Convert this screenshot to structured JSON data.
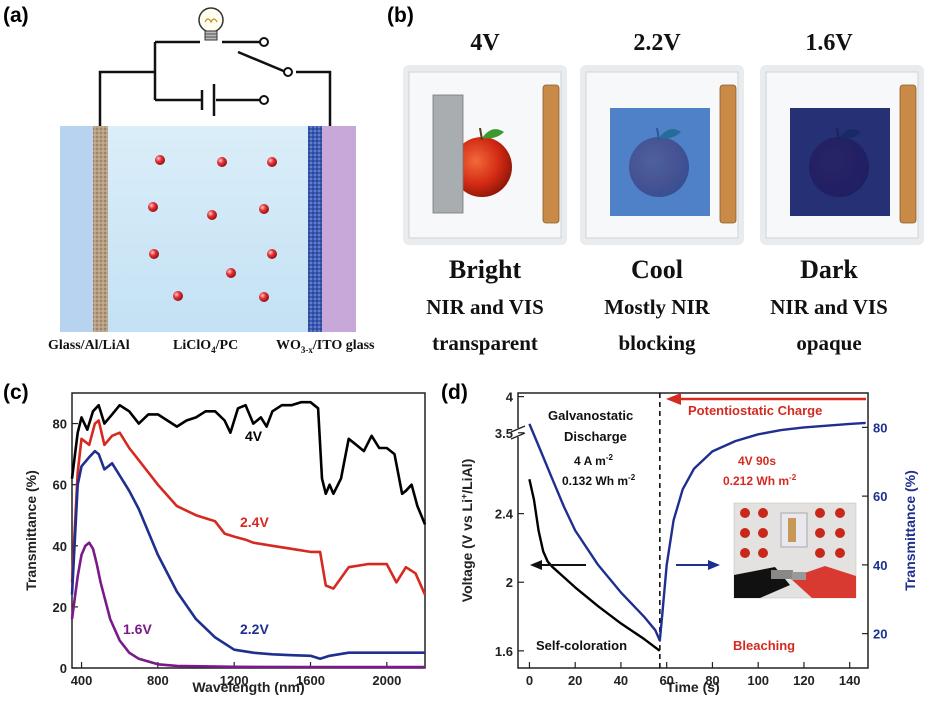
{
  "panel_a": {
    "label": "(a)",
    "layer_labels": [
      "Glass/Al/LiAl",
      "LiClO",
      "4",
      "/PC",
      "WO",
      "3-x",
      "/ITO glass"
    ],
    "icons": [
      "light-bulb-icon",
      "battery-icon",
      "switch-icon"
    ]
  },
  "panel_b": {
    "label": "(b)",
    "states": [
      {
        "voltage": "4V",
        "name": "Bright",
        "desc1": "NIR and VIS",
        "desc2": "transparent",
        "tint": "#ffffff"
      },
      {
        "voltage": "2.2V",
        "name": "Cool",
        "desc1": "Mostly NIR",
        "desc2": "blocking",
        "tint": "#1f5fb8"
      },
      {
        "voltage": "1.6V",
        "name": "Dark",
        "desc1": "NIR and VIS",
        "desc2": "opaque",
        "tint": "#15206a"
      }
    ]
  },
  "chart_data": [
    {
      "panel": "(c)",
      "type": "line",
      "title": "",
      "xlabel": "Wavelength (nm)",
      "ylabel": "Transmittance (%)",
      "xlim": [
        350,
        2200
      ],
      "ylim": [
        0,
        90
      ],
      "xticks": [
        400,
        800,
        1200,
        1600,
        2000
      ],
      "yticks": [
        0,
        20,
        40,
        60,
        80
      ],
      "series": [
        {
          "name": "4V",
          "color": "#000000",
          "x": [
            350,
            380,
            400,
            430,
            460,
            490,
            520,
            560,
            600,
            650,
            700,
            750,
            800,
            850,
            900,
            950,
            1000,
            1050,
            1100,
            1150,
            1180,
            1220,
            1260,
            1300,
            1340,
            1370,
            1400,
            1450,
            1500,
            1550,
            1600,
            1640,
            1660,
            1680,
            1700,
            1720,
            1760,
            1800,
            1840,
            1880,
            1920,
            1960,
            2000,
            2040,
            2080,
            2100,
            2130,
            2160,
            2200
          ],
          "y": [
            62,
            77,
            82,
            78,
            84,
            86,
            80,
            83,
            86,
            84,
            80,
            83,
            83,
            81,
            79,
            81,
            82,
            84,
            84,
            81,
            77,
            85,
            86,
            80,
            82,
            79,
            84,
            86,
            86,
            87,
            87,
            85,
            62,
            57,
            60,
            57,
            62,
            75,
            73,
            71,
            76,
            72,
            72,
            70,
            57,
            58,
            60,
            53,
            47
          ]
        },
        {
          "name": "2.4V",
          "color": "#d42a20",
          "x": [
            350,
            380,
            400,
            440,
            470,
            490,
            520,
            560,
            600,
            650,
            700,
            800,
            900,
            1000,
            1100,
            1150,
            1200,
            1260,
            1300,
            1400,
            1500,
            1600,
            1650,
            1680,
            1720,
            1800,
            1900,
            2000,
            2050,
            2100,
            2150,
            2200
          ],
          "y": [
            28,
            64,
            75,
            73,
            80,
            81,
            73,
            76,
            77,
            72,
            68,
            60,
            53,
            50,
            48,
            44,
            43,
            42,
            41,
            40,
            39,
            38,
            38,
            27,
            26,
            33,
            34,
            34,
            28,
            33,
            31,
            24
          ]
        },
        {
          "name": "2.2V",
          "color": "#1f2f8f",
          "x": [
            350,
            380,
            400,
            440,
            470,
            490,
            520,
            560,
            600,
            650,
            700,
            800,
            900,
            1000,
            1100,
            1200,
            1300,
            1400,
            1500,
            1600,
            1650,
            1700,
            1800,
            1900,
            2000,
            2100,
            2200
          ],
          "y": [
            24,
            60,
            66,
            69,
            71,
            70,
            65,
            67,
            63,
            58,
            52,
            37,
            25,
            16,
            10,
            6,
            5,
            4.5,
            4.2,
            4,
            3,
            4,
            5,
            5,
            5,
            5,
            5
          ]
        },
        {
          "name": "1.6V",
          "color": "#7a1a8a",
          "x": [
            350,
            380,
            400,
            420,
            440,
            460,
            480,
            500,
            550,
            600,
            650,
            700,
            800,
            900,
            1200,
            1600,
            2000,
            2200
          ],
          "y": [
            16,
            30,
            37,
            40,
            41,
            39,
            34,
            28,
            16,
            9,
            5,
            3,
            1.2,
            0.7,
            0.4,
            0.3,
            0.3,
            0.3
          ]
        }
      ]
    },
    {
      "panel": "(d)",
      "type": "line",
      "title": "",
      "xlabel": "Time (s)",
      "ylabel": "Voltage (V vs Li+/LiAl)",
      "ylabel_right": "Transmittance (%)",
      "xlim": [
        -5,
        148
      ],
      "ylim": [
        1.5,
        4.05
      ],
      "ylim_right": [
        10,
        90
      ],
      "xticks": [
        0,
        20,
        40,
        60,
        80,
        100,
        120,
        140
      ],
      "yticks": [
        1.6,
        2.0,
        2.4,
        3.5,
        4
      ],
      "yticks_right": [
        20,
        40,
        60,
        80
      ],
      "series": [
        {
          "name": "Voltage",
          "color": "#000000",
          "axis": "left",
          "x": [
            0,
            2,
            4,
            6,
            8,
            10,
            15,
            20,
            30,
            40,
            50,
            55,
            57
          ],
          "y": [
            2.6,
            2.48,
            2.3,
            2.18,
            2.12,
            2.09,
            2.03,
            1.97,
            1.86,
            1.76,
            1.67,
            1.62,
            1.6
          ]
        },
        {
          "name": "Transmittance",
          "color": "#1f2f8f",
          "axis": "right",
          "x": [
            0,
            5,
            10,
            15,
            20,
            30,
            40,
            50,
            55,
            57,
            58,
            60,
            63,
            67,
            72,
            80,
            90,
            100,
            110,
            120,
            130,
            140,
            147
          ],
          "y": [
            81,
            73,
            65,
            57,
            50,
            40,
            32,
            25,
            21,
            18,
            25,
            40,
            53,
            62,
            68,
            73,
            76,
            78,
            79.2,
            80,
            80.5,
            81,
            81.3
          ]
        }
      ]
    }
  ],
  "panel_c_text": {
    "label": "(c)"
  },
  "panel_d_text": {
    "label": "(d)",
    "discharge1": "Galvanostatic",
    "discharge2": "Discharge",
    "current": "4 A m",
    "current_sup": "-2",
    "energy1": "0.132 Wh  m",
    "energy1_sup": "-2",
    "charge": "Potentiostatic Charge",
    "charge_voltage": "4V 90s",
    "energy2": "0.212 Wh  m",
    "energy2_sup": "-2",
    "self_coloration": "Self-coloration",
    "bleaching": "Bleaching",
    "ylabel_main": "Voltage (V vs Li",
    "ylabel_sup": "+",
    "ylabel_end": "/LiAl)"
  }
}
